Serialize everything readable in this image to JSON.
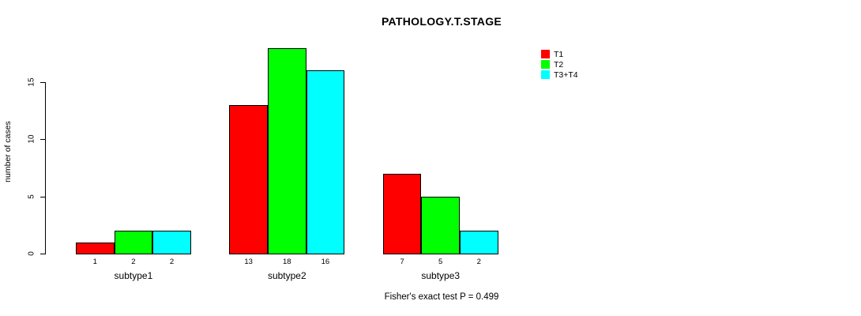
{
  "chart_data": {
    "type": "bar",
    "title": "PATHOLOGY.T.STAGE",
    "ylabel": "number of cases",
    "xlabel": "",
    "categories": [
      "subtype1",
      "subtype2",
      "subtype3"
    ],
    "series": [
      {
        "name": "T1",
        "color": "#FF0000",
        "values": [
          1,
          13,
          7
        ]
      },
      {
        "name": "T2",
        "color": "#00FF00",
        "values": [
          2,
          18,
          5
        ]
      },
      {
        "name": "T3+T4",
        "color": "#00FFFF",
        "values": [
          2,
          16,
          2
        ]
      }
    ],
    "yticks": [
      0,
      5,
      10,
      15
    ],
    "ylim": [
      0,
      18
    ],
    "grid": false,
    "legend_position": "top-right",
    "bar_border_color": "#000000",
    "background_color": "#FFFFFF",
    "caption": "Fisher's exact test P = 0.499"
  }
}
